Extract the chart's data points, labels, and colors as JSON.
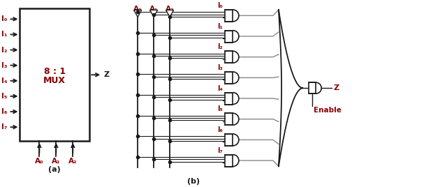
{
  "bg_color": "#ffffff",
  "dark_color": "#1a1a1a",
  "red_color": "#8B0000",
  "gray_color": "#888888",
  "fig_width": 6.4,
  "fig_height": 2.68,
  "inputs": [
    "I₀",
    "I₁",
    "I₂",
    "I₃",
    "I₄",
    "I₅",
    "I₆",
    "I₇"
  ],
  "sel_labels": [
    "A₀",
    "A₁",
    "A₂"
  ],
  "label_a": "(a)",
  "label_b": "(b)",
  "mux_label1": "8 : 1",
  "mux_label2": "MUX",
  "z_label": "Z",
  "enable_label": "Enable"
}
